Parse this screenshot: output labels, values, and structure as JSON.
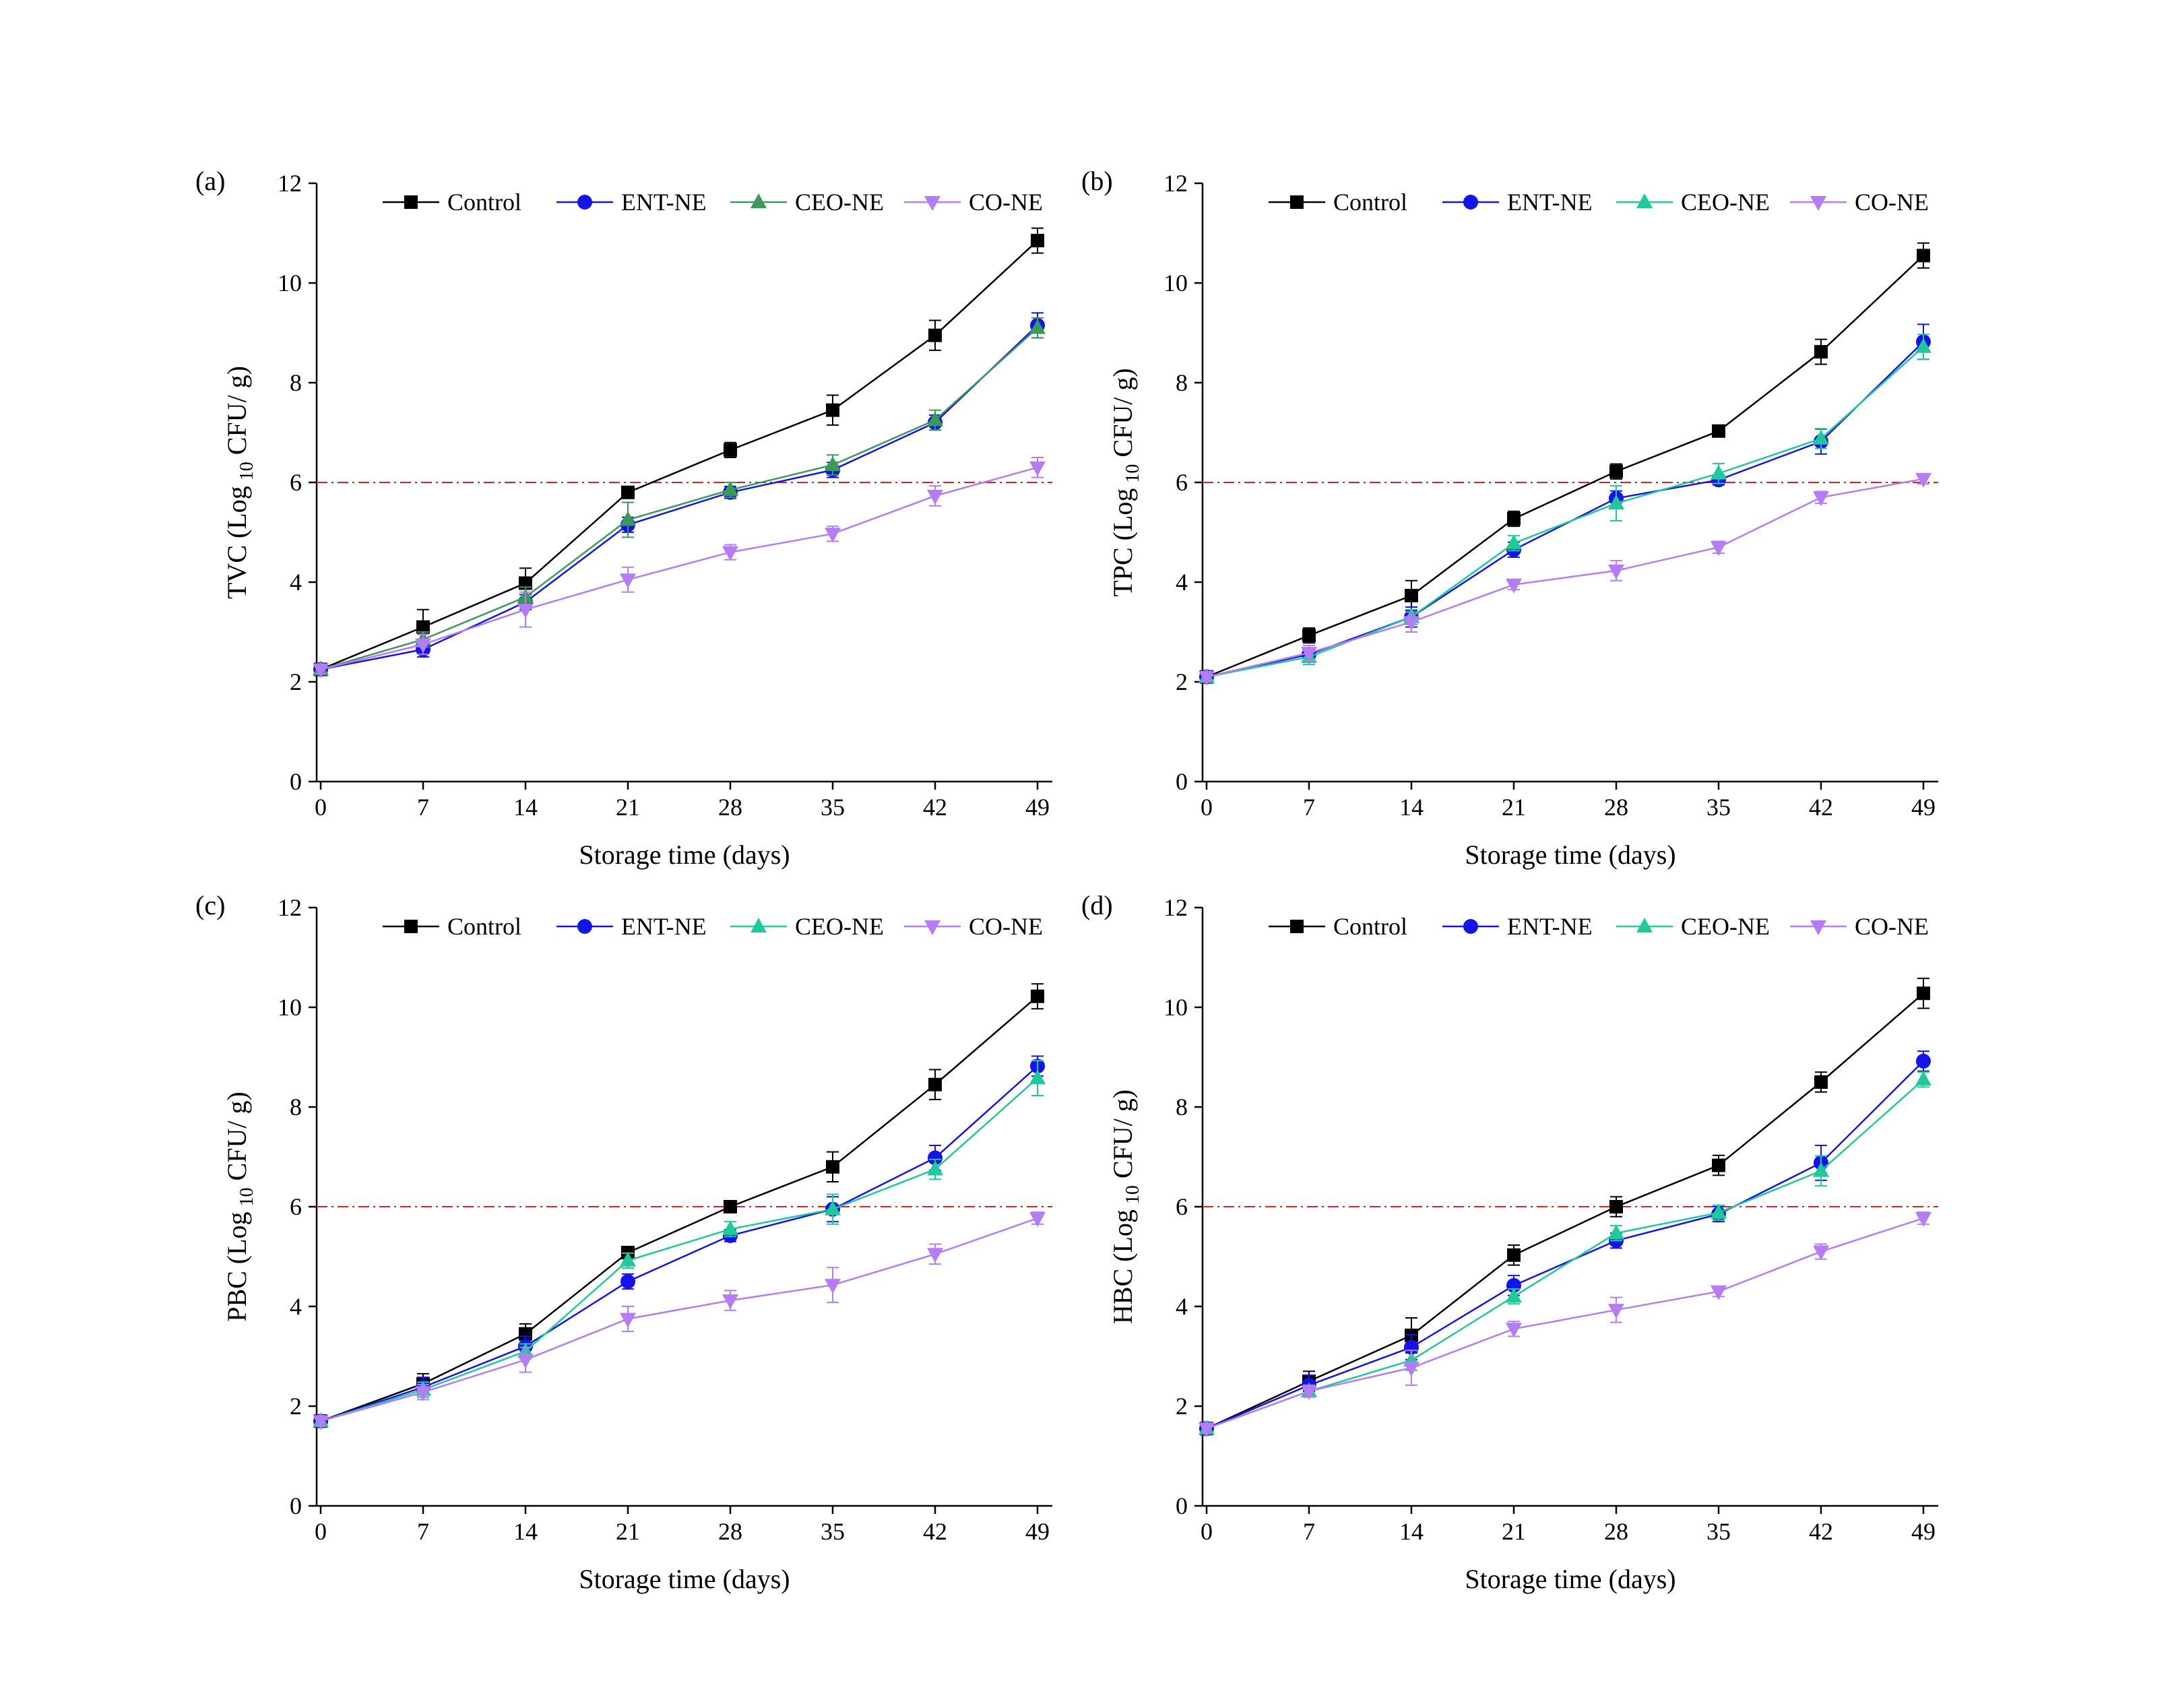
{
  "colors": {
    "Control": "#000000",
    "ENT-NE": "#1414e6",
    "CEO-NE": "#1fc99a",
    "CEO-NE-a": "#3a9a5a",
    "CO-NE": "#b57cf5",
    "threshold": "#d42020"
  },
  "chart_data": [
    {
      "type": "line",
      "panel": "(a)",
      "ylabel_main": "TVC (Log",
      "ylabel_sub": "10",
      "ylabel_end": "CFU/ g)",
      "xlabel": "Storage time (days)",
      "x": [
        0,
        7,
        14,
        21,
        28,
        35,
        42,
        49
      ],
      "xticks": [
        "0",
        "7",
        "14",
        "21",
        "28",
        "35",
        "42",
        "49"
      ],
      "ylim": [
        0,
        12
      ],
      "yticks": [
        "0",
        "2",
        "4",
        "6",
        "8",
        "10",
        "12"
      ],
      "threshold": 6,
      "legend_position": "top",
      "series": [
        {
          "name": "Control",
          "marker": "square",
          "values": [
            2.25,
            3.1,
            3.98,
            5.8,
            6.65,
            7.45,
            8.95,
            10.85
          ],
          "errors": [
            0.08,
            0.35,
            0.3,
            0.12,
            0.15,
            0.3,
            0.3,
            0.25
          ]
        },
        {
          "name": "ENT-NE",
          "marker": "circle",
          "values": [
            2.25,
            2.65,
            3.6,
            5.15,
            5.8,
            6.25,
            7.2,
            9.15
          ],
          "errors": [
            0.08,
            0.15,
            0.15,
            0.15,
            0.12,
            0.15,
            0.15,
            0.25
          ]
        },
        {
          "name": "CEO-NE",
          "marker": "triangle-up",
          "color_key": "CEO-NE-a",
          "values": [
            2.25,
            2.85,
            3.7,
            5.25,
            5.85,
            6.35,
            7.25,
            9.1
          ],
          "errors": [
            0.08,
            0.15,
            0.2,
            0.35,
            0.15,
            0.2,
            0.2,
            0.2
          ]
        },
        {
          "name": "CO-NE",
          "marker": "triangle-down",
          "values": [
            2.25,
            2.75,
            3.45,
            4.05,
            4.6,
            4.97,
            5.73,
            6.3
          ],
          "errors": [
            0.08,
            0.2,
            0.35,
            0.25,
            0.15,
            0.15,
            0.2,
            0.2
          ]
        }
      ]
    },
    {
      "type": "line",
      "panel": "(b)",
      "ylabel_main": "TPC (Log",
      "ylabel_sub": "10",
      "ylabel_end": "CFU/ g)",
      "xlabel": "Storage time (days)",
      "x": [
        0,
        7,
        14,
        21,
        28,
        35,
        42,
        49
      ],
      "xticks": [
        "0",
        "7",
        "14",
        "21",
        "28",
        "35",
        "42",
        "49"
      ],
      "ylim": [
        0,
        12
      ],
      "yticks": [
        "0",
        "2",
        "4",
        "6",
        "8",
        "10",
        "12"
      ],
      "threshold": 6,
      "legend_position": "top",
      "series": [
        {
          "name": "Control",
          "marker": "square",
          "values": [
            2.1,
            2.93,
            3.73,
            5.27,
            6.22,
            7.03,
            8.62,
            10.55
          ],
          "errors": [
            0.08,
            0.15,
            0.3,
            0.15,
            0.15,
            0.1,
            0.25,
            0.25
          ]
        },
        {
          "name": "ENT-NE",
          "marker": "circle",
          "values": [
            2.1,
            2.55,
            3.3,
            4.65,
            5.68,
            6.05,
            6.82,
            8.82
          ],
          "errors": [
            0.08,
            0.12,
            0.2,
            0.15,
            0.15,
            0.1,
            0.25,
            0.35
          ]
        },
        {
          "name": "CEO-NE",
          "marker": "triangle-up",
          "values": [
            2.1,
            2.5,
            3.3,
            4.78,
            5.58,
            6.18,
            6.88,
            8.72
          ],
          "errors": [
            0.08,
            0.15,
            0.15,
            0.15,
            0.35,
            0.2,
            0.2,
            0.25
          ]
        },
        {
          "name": "CO-NE",
          "marker": "triangle-down",
          "values": [
            2.1,
            2.58,
            3.2,
            3.95,
            4.23,
            4.7,
            5.7,
            6.07
          ],
          "errors": [
            0.08,
            0.15,
            0.2,
            0.1,
            0.2,
            0.12,
            0.12,
            0.1
          ]
        }
      ]
    },
    {
      "type": "line",
      "panel": "(c)",
      "ylabel_main": "PBC (Log",
      "ylabel_sub": "10",
      "ylabel_end": "CFU/ g)",
      "xlabel": "Storage time (days)",
      "x": [
        0,
        7,
        14,
        21,
        28,
        35,
        42,
        49
      ],
      "xticks": [
        "0",
        "7",
        "14",
        "21",
        "28",
        "35",
        "42",
        "49"
      ],
      "ylim": [
        0,
        12
      ],
      "yticks": [
        "0",
        "2",
        "4",
        "6",
        "8",
        "10",
        "12"
      ],
      "threshold": 6,
      "legend_position": "top",
      "series": [
        {
          "name": "Control",
          "marker": "square",
          "values": [
            1.7,
            2.45,
            3.45,
            5.08,
            6.0,
            6.8,
            8.45,
            10.22
          ],
          "errors": [
            0.08,
            0.2,
            0.2,
            0.12,
            0.08,
            0.3,
            0.3,
            0.25
          ]
        },
        {
          "name": "ENT-NE",
          "marker": "circle",
          "values": [
            1.7,
            2.38,
            3.2,
            4.5,
            5.42,
            5.95,
            6.98,
            8.82
          ],
          "errors": [
            0.08,
            0.2,
            0.2,
            0.15,
            0.12,
            0.25,
            0.25,
            0.2
          ]
        },
        {
          "name": "CEO-NE",
          "marker": "triangle-up",
          "values": [
            1.7,
            2.33,
            3.1,
            4.92,
            5.55,
            5.95,
            6.75,
            8.58
          ],
          "errors": [
            0.08,
            0.15,
            0.15,
            0.15,
            0.15,
            0.3,
            0.2,
            0.35
          ]
        },
        {
          "name": "CO-NE",
          "marker": "triangle-down",
          "values": [
            1.7,
            2.28,
            2.93,
            3.75,
            4.12,
            4.43,
            5.05,
            5.77
          ],
          "errors": [
            0.08,
            0.15,
            0.25,
            0.25,
            0.2,
            0.35,
            0.2,
            0.12
          ]
        }
      ]
    },
    {
      "type": "line",
      "panel": "(d)",
      "ylabel_main": "HBC (Log",
      "ylabel_sub": "10",
      "ylabel_end": "CFU/ g)",
      "xlabel": "Storage time (days)",
      "x": [
        0,
        7,
        14,
        21,
        28,
        35,
        42,
        49
      ],
      "xticks": [
        "0",
        "7",
        "14",
        "21",
        "28",
        "35",
        "42",
        "49"
      ],
      "ylim": [
        0,
        12
      ],
      "yticks": [
        "0",
        "2",
        "4",
        "6",
        "8",
        "10",
        "12"
      ],
      "threshold": 6,
      "legend_position": "top",
      "series": [
        {
          "name": "Control",
          "marker": "square",
          "values": [
            1.55,
            2.5,
            3.42,
            5.03,
            6.0,
            6.83,
            8.5,
            10.28
          ],
          "errors": [
            0.08,
            0.2,
            0.35,
            0.2,
            0.2,
            0.2,
            0.2,
            0.3
          ]
        },
        {
          "name": "ENT-NE",
          "marker": "circle",
          "values": [
            1.55,
            2.42,
            3.18,
            4.42,
            5.32,
            5.85,
            6.88,
            8.92
          ],
          "errors": [
            0.08,
            0.2,
            0.25,
            0.2,
            0.15,
            0.15,
            0.35,
            0.2
          ]
        },
        {
          "name": "CEO-NE",
          "marker": "triangle-up",
          "values": [
            1.55,
            2.3,
            2.92,
            4.2,
            5.47,
            5.88,
            6.72,
            8.55
          ],
          "errors": [
            0.08,
            0.1,
            0.2,
            0.15,
            0.15,
            0.15,
            0.3,
            0.15
          ]
        },
        {
          "name": "CO-NE",
          "marker": "triangle-down",
          "values": [
            1.55,
            2.3,
            2.77,
            3.55,
            3.93,
            4.3,
            5.1,
            5.77
          ],
          "errors": [
            0.08,
            0.12,
            0.35,
            0.15,
            0.25,
            0.1,
            0.15,
            0.12
          ]
        }
      ]
    }
  ]
}
